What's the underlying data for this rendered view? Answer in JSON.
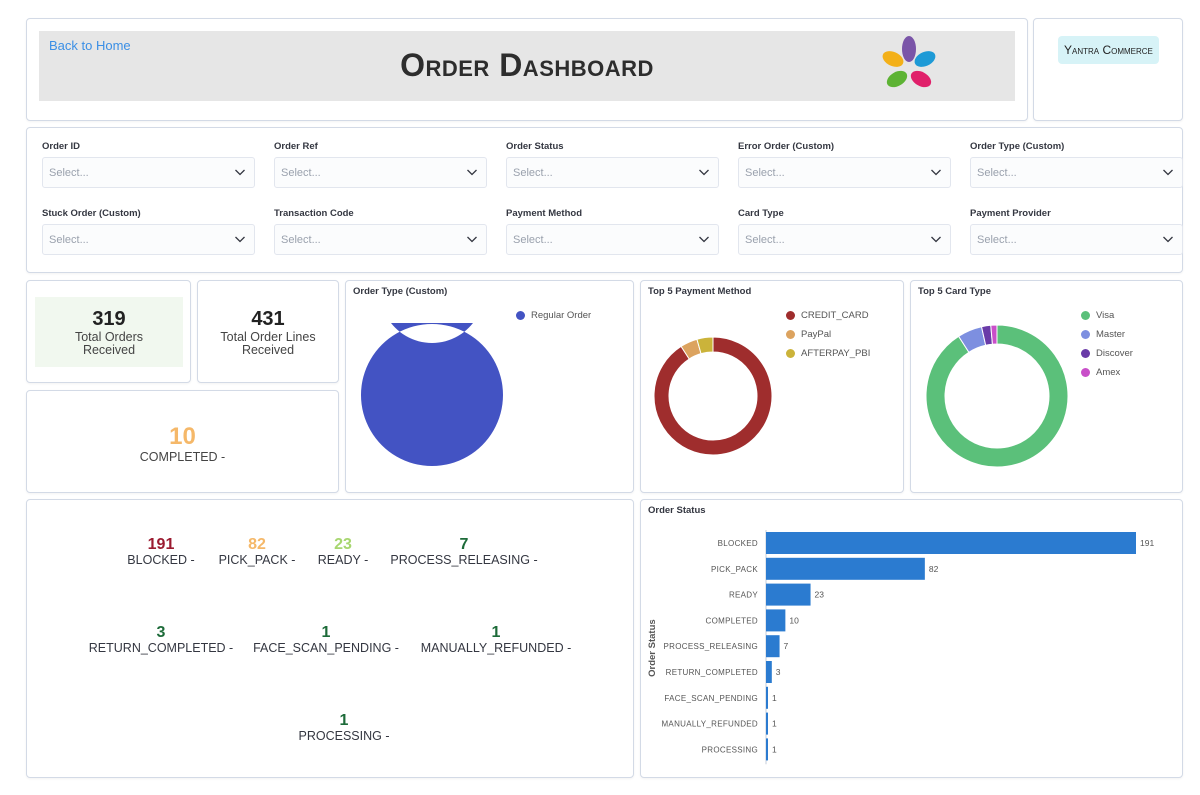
{
  "header": {
    "back_link": "Back to Home",
    "title": "Order Dashboard",
    "brand": "Yantra Commerce"
  },
  "filters": [
    {
      "label": "Order ID",
      "placeholder": "Select..."
    },
    {
      "label": "Order Ref",
      "placeholder": "Select..."
    },
    {
      "label": "Order Status",
      "placeholder": "Select..."
    },
    {
      "label": "Error Order (Custom)",
      "placeholder": "Select..."
    },
    {
      "label": "Order Type (Custom)",
      "placeholder": "Select..."
    },
    {
      "label": "Stuck Order (Custom)",
      "placeholder": "Select..."
    },
    {
      "label": "Transaction Code",
      "placeholder": "Select..."
    },
    {
      "label": "Payment Method",
      "placeholder": "Select..."
    },
    {
      "label": "Card Type",
      "placeholder": "Select..."
    },
    {
      "label": "Payment Provider",
      "placeholder": "Select..."
    }
  ],
  "metrics": {
    "total_orders": {
      "value": "319",
      "label_line1": "Total Orders",
      "label_line2": "Received"
    },
    "total_lines": {
      "value": "431",
      "label_line1": "Total Order Lines",
      "label_line2": "Received"
    },
    "completed": {
      "value": "10",
      "label": "COMPLETED -",
      "color": "#f5b869"
    }
  },
  "status_counts": [
    {
      "value": "191",
      "label": "BLOCKED -",
      "color": "#9b1b30"
    },
    {
      "value": "82",
      "label": "PICK_PACK -",
      "color": "#f5b869"
    },
    {
      "value": "23",
      "label": "READY -",
      "color": "#a7d66f"
    },
    {
      "value": "7",
      "label": "PROCESS_RELEASING -",
      "color": "#1d6b39"
    },
    {
      "value": "3",
      "label": "RETURN_COMPLETED -",
      "color": "#1d6b39"
    },
    {
      "value": "1",
      "label": "FACE_SCAN_PENDING -",
      "color": "#1d6b39"
    },
    {
      "value": "1",
      "label": "MANUALLY_REFUNDED -",
      "color": "#1d6b39"
    },
    {
      "value": "1",
      "label": "PROCESSING -",
      "color": "#1d6b39"
    }
  ],
  "colors": {
    "accent": "#3b8fe5",
    "bar": "#2b7bd0",
    "brand_badge": "#d7f3f7"
  },
  "chart_data": [
    {
      "type": "pie",
      "title": "Order Type (Custom)",
      "labels": [
        "Regular Order"
      ],
      "values": [
        319
      ],
      "colors": [
        "#4353c3"
      ],
      "legend": "top-right"
    },
    {
      "type": "pie",
      "title": "Top 5 Payment Method",
      "labels": [
        "CREDIT_CARD",
        "PayPal",
        "AFTERPAY_PBI"
      ],
      "values": [
        290,
        15,
        14
      ],
      "colors": [
        "#9f2d2d",
        "#dca35f",
        "#cbb33a"
      ],
      "legend": "top-right"
    },
    {
      "type": "pie",
      "title": "Top 5 Card Type",
      "labels": [
        "Visa",
        "Master",
        "Discover",
        "Amex"
      ],
      "values": [
        260,
        16,
        6,
        4
      ],
      "colors": [
        "#5bc07a",
        "#7d8fe0",
        "#6a3ba8",
        "#c94fc9"
      ],
      "legend": "top-right"
    },
    {
      "type": "bar",
      "title": "Order Status",
      "orientation": "horizontal",
      "ylabel": "Order Status",
      "categories": [
        "BLOCKED",
        "PICK_PACK",
        "READY",
        "COMPLETED",
        "PROCESS_RELEASING",
        "RETURN_COMPLETED",
        "FACE_SCAN_PENDING",
        "MANUALLY_REFUNDED",
        "PROCESSING"
      ],
      "values": [
        191,
        82,
        23,
        10,
        7,
        3,
        1,
        1,
        1
      ],
      "color": "#2b7bd0",
      "xlim": [
        0,
        191
      ],
      "grid": false
    }
  ]
}
